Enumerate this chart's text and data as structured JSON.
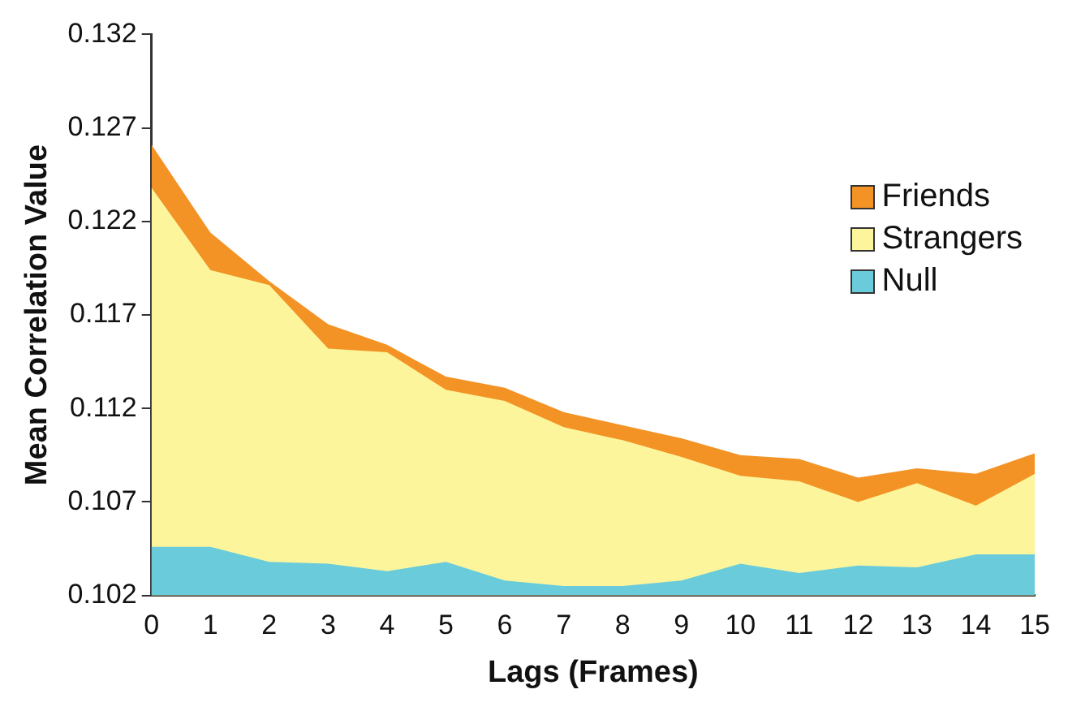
{
  "chart_data": {
    "type": "area",
    "xlabel": "Lags (Frames)",
    "ylabel": "Mean Correlation Value",
    "x": [
      0,
      1,
      2,
      3,
      4,
      5,
      6,
      7,
      8,
      9,
      10,
      11,
      12,
      13,
      14,
      15
    ],
    "xlim": [
      0,
      15
    ],
    "xticks": [
      0,
      1,
      2,
      3,
      4,
      5,
      6,
      7,
      8,
      9,
      10,
      11,
      12,
      13,
      14,
      15
    ],
    "ylim": [
      0.102,
      0.132
    ],
    "yticks": [
      0.102,
      0.107,
      0.112,
      0.117,
      0.122,
      0.127,
      0.132
    ],
    "grid": false,
    "legend": "top right",
    "marker": "none",
    "series": [
      {
        "name": "Friends",
        "color": "#f39325",
        "values": [
          0.1261,
          0.1214,
          0.1188,
          0.1165,
          0.1154,
          0.1137,
          0.1131,
          0.1118,
          0.1111,
          0.1104,
          0.1095,
          0.1093,
          0.1083,
          0.1088,
          0.1085,
          0.1096
        ]
      },
      {
        "name": "Strangers",
        "color": "#fdf59c",
        "values": [
          0.1238,
          0.1194,
          0.1186,
          0.1152,
          0.115,
          0.113,
          0.1124,
          0.111,
          0.1103,
          0.1094,
          0.1084,
          0.1081,
          0.107,
          0.108,
          0.1068,
          0.1085
        ]
      },
      {
        "name": "Null",
        "color": "#6accdb",
        "values": [
          0.1046,
          0.1046,
          0.1038,
          0.1037,
          0.1033,
          0.1038,
          0.1028,
          0.1025,
          0.1025,
          0.1028,
          0.1037,
          0.1032,
          0.1036,
          0.1035,
          0.1042,
          0.1042
        ]
      }
    ]
  }
}
